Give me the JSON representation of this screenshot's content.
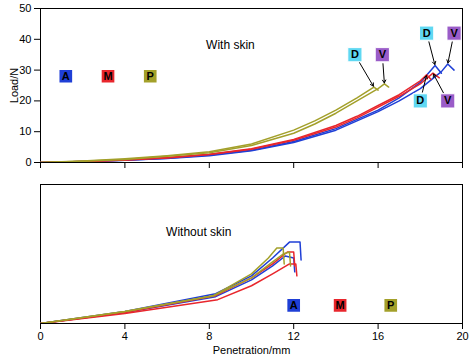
{
  "chart_data": [
    {
      "type": "line",
      "xlim": [
        0,
        20
      ],
      "xticks": [
        0,
        4,
        8,
        12,
        16,
        20
      ],
      "ylim": [
        0,
        50
      ],
      "yticks": [
        0,
        10,
        20,
        30,
        40,
        50
      ],
      "ylabel": "Load/N",
      "tick_labels": "y",
      "annotations": [
        {
          "text": "With skin",
          "x": 9,
          "y": 38
        }
      ],
      "series": [
        {
          "name": "A",
          "color": "#1f3fd6",
          "label": "D",
          "label_color": "#5fd8f2",
          "label_x": 18.3,
          "label_y": 42,
          "x": [
            0,
            2,
            4,
            6,
            8,
            10,
            12,
            14,
            16,
            17,
            18,
            18.7,
            19
          ],
          "values": [
            0,
            0.3,
            0.7,
            1.4,
            2.4,
            4,
            6.8,
            11,
            17,
            21,
            26,
            31.5,
            29
          ]
        },
        {
          "name": "A",
          "color": "#1f3fd6",
          "label": "V",
          "label_color": "#9a5cc8",
          "label_x": 19.6,
          "label_y": 42,
          "x": [
            0,
            2,
            4,
            6,
            8,
            10,
            12,
            14,
            16,
            17,
            18,
            19,
            19.3,
            19.6
          ],
          "values": [
            0,
            0.3,
            0.7,
            1.3,
            2.2,
            3.8,
            6.5,
            10.5,
            16.5,
            20,
            24,
            29.5,
            32,
            30
          ]
        },
        {
          "name": "M",
          "color": "#e8262c",
          "label": "D",
          "label_color": "#5fd8f2",
          "label_x": 18,
          "label_y": 20,
          "x": [
            0,
            2,
            4,
            6,
            8,
            10,
            12,
            14,
            15,
            16,
            17,
            18,
            18.3,
            18.5
          ],
          "values": [
            0,
            0.3,
            0.8,
            1.6,
            2.7,
            4.5,
            7.5,
            12,
            15,
            18.5,
            22,
            26.5,
            28.5,
            27
          ]
        },
        {
          "name": "M",
          "color": "#e8262c",
          "label": "V",
          "label_color": "#9a5cc8",
          "label_x": 19.3,
          "label_y": 20,
          "x": [
            0,
            2,
            4,
            6,
            8,
            10,
            12,
            14,
            15,
            16,
            17,
            18,
            18.6,
            18.9
          ],
          "values": [
            0,
            0.3,
            0.8,
            1.5,
            2.6,
            4.3,
            7.2,
            11.5,
            14.5,
            18,
            21.5,
            25.5,
            29,
            27.5
          ]
        },
        {
          "name": "P",
          "color": "#a3a02a",
          "label": "D",
          "label_color": "#5fd8f2",
          "label_x": 14.9,
          "label_y": 35,
          "x": [
            0,
            2,
            4,
            6,
            8,
            10,
            12,
            13,
            14,
            15,
            15.8,
            16
          ],
          "values": [
            0,
            0.5,
            1.2,
            2.2,
            3.5,
            6,
            10.5,
            13.5,
            17,
            21,
            24.5,
            23.5
          ]
        },
        {
          "name": "P",
          "color": "#a3a02a",
          "label": "V",
          "label_color": "#9a5cc8",
          "label_x": 16.2,
          "label_y": 35,
          "x": [
            0,
            2,
            4,
            6,
            8,
            10,
            12,
            13,
            14,
            15,
            16,
            16.3,
            16.5
          ],
          "values": [
            0,
            0.4,
            1,
            2,
            3.2,
            5.5,
            9.5,
            12.5,
            16,
            20,
            24,
            25.5,
            24.5
          ]
        }
      ]
    },
    {
      "type": "line",
      "xlim": [
        0,
        20
      ],
      "xticks": [
        0,
        4,
        8,
        12,
        16,
        20
      ],
      "ylim": [
        0,
        7
      ],
      "xlabel": "Penetration/mm",
      "tick_labels": "x",
      "annotations": [
        {
          "text": "Without skin",
          "x": 7.5,
          "y": 4.6
        }
      ],
      "series": [
        {
          "name": "A",
          "color": "#1f3fd6",
          "x": [
            0,
            4,
            8.3,
            10,
            11,
            11.8,
            12.3,
            12.35
          ],
          "values": [
            0,
            0.6,
            1.5,
            2.4,
            3.3,
            4.1,
            4.1,
            3.2
          ]
        },
        {
          "name": "A",
          "color": "#1f3fd6",
          "x": [
            0,
            4,
            8.3,
            10,
            11,
            11.6,
            12,
            12.05
          ],
          "values": [
            0,
            0.55,
            1.35,
            2.2,
            2.9,
            3.4,
            3.3,
            2.6
          ]
        },
        {
          "name": "M",
          "color": "#e8262c",
          "x": [
            0,
            4,
            8.3,
            10,
            11,
            11.7,
            12,
            12.05
          ],
          "values": [
            0,
            0.55,
            1.4,
            2.3,
            3,
            3.6,
            3.6,
            2.9
          ]
        },
        {
          "name": "M",
          "color": "#e8262c",
          "x": [
            0,
            4,
            8.4,
            10,
            11,
            11.8,
            12.1,
            12.15
          ],
          "values": [
            0,
            0.5,
            1.2,
            1.9,
            2.5,
            3,
            3,
            2.4
          ]
        },
        {
          "name": "P",
          "color": "#a3a02a",
          "x": [
            0,
            4,
            8.2,
            10,
            10.8,
            11.2,
            11.5,
            11.55
          ],
          "values": [
            0,
            0.6,
            1.4,
            2.5,
            3.3,
            3.8,
            3.8,
            3
          ]
        },
        {
          "name": "P",
          "color": "#a3a02a",
          "x": [
            0,
            4,
            8.2,
            10,
            11,
            11.5,
            11.8,
            11.85
          ],
          "values": [
            0,
            0.6,
            1.4,
            2.3,
            3.1,
            3.5,
            3.6,
            2.9
          ]
        }
      ]
    }
  ]
}
